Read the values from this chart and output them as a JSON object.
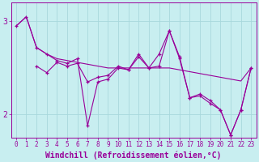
{
  "xlabel": "Windchill (Refroidissement éolien,°C)",
  "bg_color": "#c8eef0",
  "line_color": "#990099",
  "grid_color": "#a8d8dc",
  "xlim": [
    -0.5,
    23.5
  ],
  "ylim": [
    1.75,
    3.2
  ],
  "yticks": [
    2,
    3
  ],
  "xticks": [
    0,
    1,
    2,
    3,
    4,
    5,
    6,
    7,
    8,
    9,
    10,
    11,
    12,
    13,
    14,
    15,
    16,
    17,
    18,
    19,
    20,
    21,
    22,
    23
  ],
  "line1_x": [
    0,
    1,
    2,
    3,
    4,
    5,
    6,
    7,
    8,
    9,
    10,
    11,
    12,
    13,
    14,
    15,
    16,
    17,
    18,
    19,
    20,
    21,
    22,
    23
  ],
  "line1_y": [
    2.95,
    3.05,
    2.72,
    2.65,
    2.6,
    2.58,
    2.56,
    2.54,
    2.52,
    2.5,
    2.5,
    2.5,
    2.5,
    2.5,
    2.5,
    2.5,
    2.48,
    2.46,
    2.44,
    2.42,
    2.4,
    2.38,
    2.36,
    2.5
  ],
  "line2_x": [
    0,
    1,
    2,
    3,
    4,
    5,
    6,
    7,
    8,
    9,
    10,
    11,
    12,
    13,
    14,
    15,
    16,
    17,
    18,
    19,
    20,
    21,
    22,
    23
  ],
  "line2_y": [
    2.95,
    3.05,
    2.72,
    2.65,
    2.58,
    2.55,
    2.6,
    1.88,
    2.35,
    2.38,
    2.5,
    2.48,
    2.65,
    2.5,
    2.65,
    2.9,
    2.6,
    2.18,
    2.2,
    2.12,
    2.05,
    1.78,
    2.05,
    2.5
  ],
  "line3_x": [
    2,
    3,
    4,
    5,
    6,
    7,
    8,
    9,
    10,
    11,
    12,
    13,
    14,
    15,
    16,
    17,
    18,
    19,
    20,
    21,
    22,
    23
  ],
  "line3_y": [
    2.52,
    2.45,
    2.56,
    2.52,
    2.55,
    2.35,
    2.4,
    2.42,
    2.52,
    2.48,
    2.62,
    2.5,
    2.52,
    2.9,
    2.62,
    2.18,
    2.22,
    2.15,
    2.05,
    1.78,
    2.05,
    2.5
  ],
  "tick_fontsize": 5.5,
  "xlabel_fontsize": 7.0
}
